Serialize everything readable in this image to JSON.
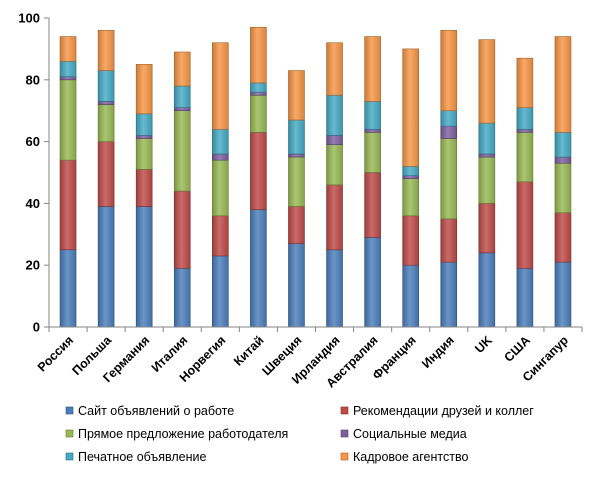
{
  "chart_data": {
    "type": "bar",
    "stacked": true,
    "title": "",
    "xlabel": "",
    "ylabel": "",
    "ylim": [
      0,
      100
    ],
    "yticks": [
      0,
      20,
      40,
      60,
      80,
      100
    ],
    "grid": false,
    "legend_position": "bottom",
    "categories": [
      "Россия",
      "Польша",
      "Германия",
      "Италия",
      "Норвегия",
      "Китай",
      "Швеция",
      "Ирландия",
      "Австралия",
      "Франция",
      "Индия",
      "UK",
      "США",
      "Сингапур"
    ],
    "series": [
      {
        "name": "Сайт объявлений о работе",
        "color": "#4a7ebb",
        "values": [
          25,
          39,
          39,
          19,
          23,
          38,
          27,
          25,
          29,
          20,
          21,
          24,
          19,
          21
        ]
      },
      {
        "name": "Рекомендации друзей и коллег",
        "color": "#be4b48",
        "values": [
          29,
          21,
          12,
          25,
          13,
          25,
          12,
          21,
          21,
          16,
          14,
          16,
          28,
          16
        ]
      },
      {
        "name": "Прямое предложение работодателя",
        "color": "#98b954",
        "values": [
          26,
          12,
          10,
          26,
          18,
          12,
          16,
          13,
          13,
          12,
          26,
          15,
          16,
          16
        ]
      },
      {
        "name": "Социальные медиа",
        "color": "#7d60a0",
        "values": [
          1,
          1,
          1,
          1,
          2,
          1,
          1,
          3,
          1,
          1,
          4,
          1,
          1,
          2
        ]
      },
      {
        "name": "Печатное объявление",
        "color": "#46aac5",
        "values": [
          5,
          10,
          7,
          7,
          8,
          3,
          11,
          13,
          9,
          3,
          5,
          10,
          7,
          8
        ]
      },
      {
        "name": "Кадровое агентство",
        "color": "#f79646",
        "values": [
          8,
          13,
          16,
          11,
          28,
          18,
          16,
          17,
          21,
          38,
          26,
          27,
          16,
          31
        ]
      }
    ]
  }
}
